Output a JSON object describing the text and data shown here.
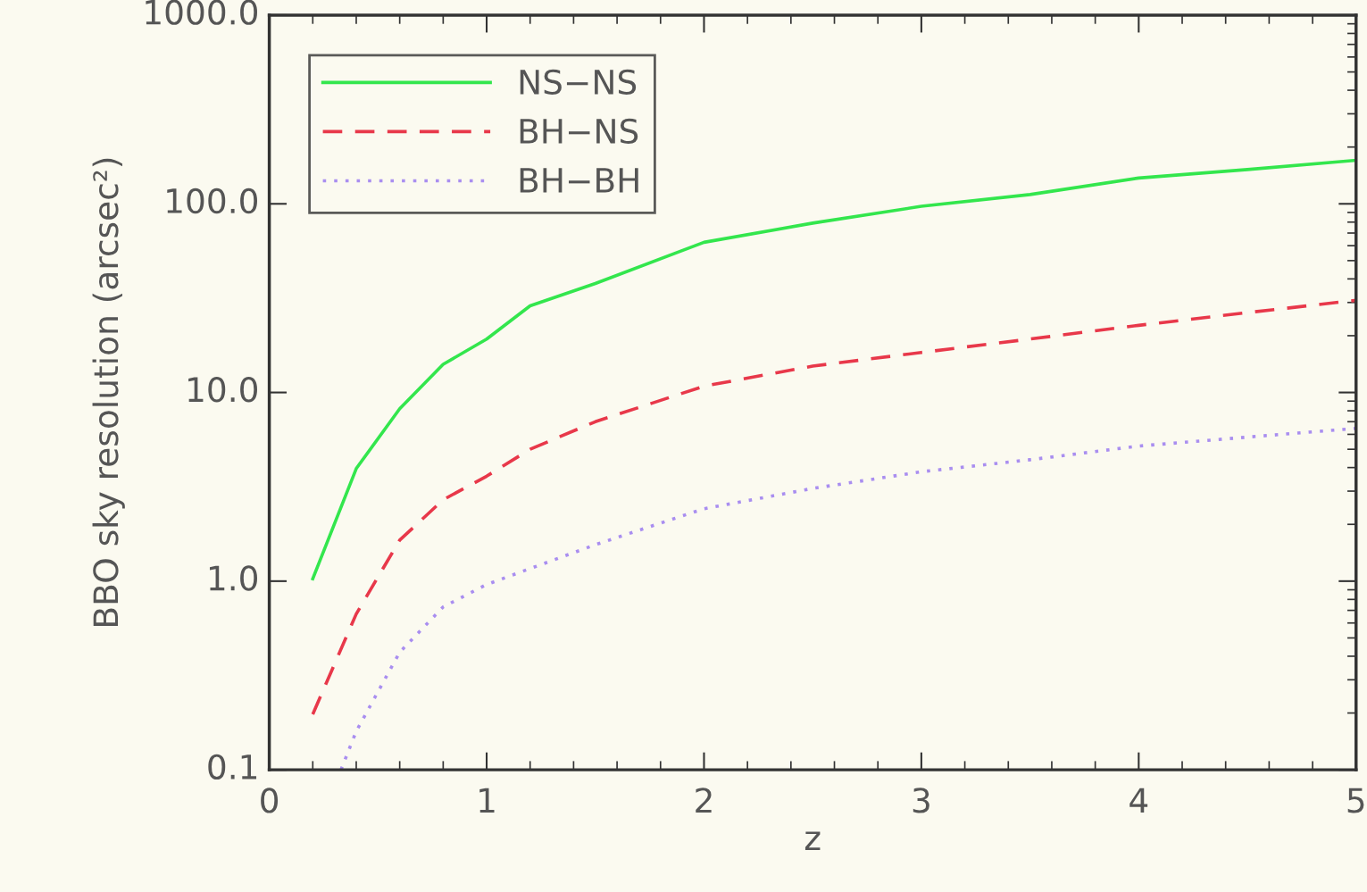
{
  "chart_data": {
    "type": "line",
    "xlabel": "z",
    "ylabel": "BBO sky resolution (arcsec²)",
    "log": "y",
    "xlim": [
      0,
      5
    ],
    "ylim": [
      0.1,
      1000
    ],
    "xticks": [
      0,
      1,
      2,
      3,
      4,
      5
    ],
    "yticks": [
      {
        "value": 0.1,
        "label": "0.1"
      },
      {
        "value": 1,
        "label": "1.0"
      },
      {
        "value": 10,
        "label": "10.0"
      },
      {
        "value": 100,
        "label": "100.0"
      },
      {
        "value": 1000,
        "label": "1000.0"
      }
    ],
    "grid": false,
    "legend": "top left",
    "series": [
      {
        "name": "NS−NS",
        "color": "#33e64d",
        "line_style": "solid",
        "x": [
          0.2,
          0.4,
          0.6,
          0.8,
          1.0,
          1.2,
          1.5,
          2.0,
          2.5,
          3.0,
          3.5,
          4.0,
          4.5,
          5.0
        ],
        "values": [
          1.03,
          3.95,
          8.2,
          14.1,
          19.2,
          28.8,
          37.8,
          62.5,
          79,
          97,
          112,
          137,
          152,
          170
        ]
      },
      {
        "name": "BH−NS",
        "color": "#e8384a",
        "line_style": "dashed",
        "x": [
          0.2,
          0.4,
          0.6,
          0.8,
          1.0,
          1.2,
          1.5,
          2.0,
          2.5,
          3.0,
          3.5,
          4.0,
          4.5,
          5.0
        ],
        "values": [
          0.197,
          0.67,
          1.65,
          2.7,
          3.6,
          5.0,
          7.0,
          10.8,
          13.8,
          16.3,
          19.2,
          22.7,
          26.5,
          30.8
        ]
      },
      {
        "name": "BH−BH",
        "color": "#a98ef0",
        "line_style": "dotted",
        "x": [
          0.33,
          0.4,
          0.6,
          0.8,
          1.0,
          1.5,
          2.0,
          2.5,
          3.0,
          3.5,
          4.0,
          4.5,
          5.0
        ],
        "values": [
          0.1,
          0.16,
          0.42,
          0.73,
          0.96,
          1.56,
          2.42,
          3.1,
          3.8,
          4.4,
          5.2,
          5.8,
          6.45
        ]
      }
    ]
  }
}
